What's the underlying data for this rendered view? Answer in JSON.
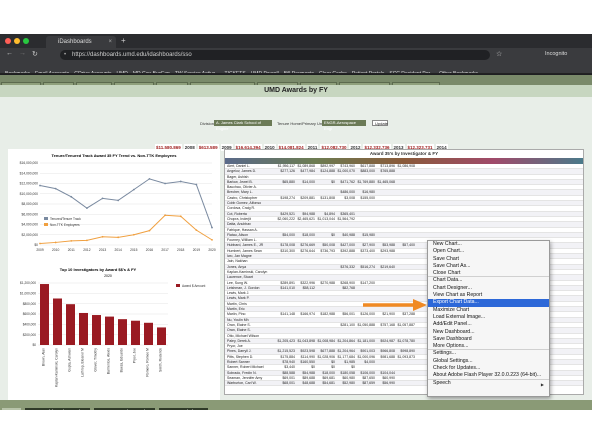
{
  "browser": {
    "tab_title": "iDashboards",
    "url": "https://dashboards.umd.edu/idashboards/sso",
    "profile": "Incognito",
    "bookmarks": [
      "Bookmarks",
      "Email Accounts",
      "GDrive Accounts",
      "UMD",
      "MD Gov BusExp",
      "TW Service Activa...",
      "TICKETS",
      "UMD Payroll",
      "Bill Payments",
      "Clear Cache",
      "Patient Portals",
      "SCC Resident Por...",
      "Other Bookmarks"
    ]
  },
  "dash_tabs": [
    "ADMR: Extension",
    "ENGR: Dean",
    "ENGR: Dev-DK",
    "Fringe PI/A Group",
    "Visibility Plots",
    "ENGR: Department Dashboards",
    "AGNR-ENGR Dev",
    "ENGR: Dev-Lab",
    "ENGR: IDR Dashboards",
    "SVPAAP: Dashboards"
  ],
  "app": {
    "title": "UMD Awards by FY",
    "division_label": "Division",
    "division_value": "A. James Clark School of Engine",
    "tenure_label": "Tenure Home/Primary Unit",
    "tenure_value": "ENGR-Aerospace Engi",
    "update_label": "Update"
  },
  "kpis": [
    {
      "value": "$11,580,869",
      "year": "2008"
    },
    {
      "value": "$613,589",
      "year": "2009"
    },
    {
      "value": "$16,614,394",
      "year": "2010"
    },
    {
      "value": "$14,081,824",
      "year": "2011"
    },
    {
      "value": "$12,082,730",
      "year": "2012"
    },
    {
      "value": "$12,332,736",
      "year": "2013"
    },
    {
      "value": "$12,323,731",
      "year": "2014"
    }
  ],
  "chart_data": [
    {
      "type": "line",
      "title": "Tenure/Tenured Track Award 35 FY Trend vs. Non-TTK Employees",
      "x": [
        "2009",
        "2010",
        "2011",
        "2012",
        "2013",
        "2014",
        "2015",
        "2016",
        "2017",
        "2018",
        "2019",
        "2020"
      ],
      "ylim": [
        0,
        16000000
      ],
      "yticks": [
        "$0",
        "$2,000,000",
        "$4,000,000",
        "$6,000,000",
        "$8,000,000",
        "$10,000,000",
        "$12,000,000",
        "$14,000,000",
        "$16,000,000"
      ],
      "series": [
        {
          "name": "Tenured/Tenure Track",
          "color": "#7a8aa0",
          "values": [
            11600000,
            11000000,
            9400000,
            7200000,
            9100000,
            8700000,
            10800000,
            12900000,
            12000000,
            12400000,
            11800000,
            3400000
          ]
        },
        {
          "name": "Non-TTK Employees",
          "color": "#f0a040",
          "values": [
            300000,
            500000,
            800000,
            900000,
            1600000,
            1500000,
            2000000,
            2800000,
            5800000,
            5600000,
            2900000,
            1000000
          ]
        }
      ]
    },
    {
      "type": "bar",
      "title": "Top 10 Investigators by Award $$'s & FY",
      "filter": "2020",
      "legend": "Award $ Amount",
      "ylim": [
        0,
        1200000
      ],
      "yticks": [
        "$0",
        "$200,000",
        "$400,000",
        "$600,000",
        "$800,000",
        "$1,000,000",
        "$1,200,000"
      ],
      "categories": [
        "Brown, Alan",
        "Kaplan-Kaminski, Carolyn",
        "Gupta, Ashwani",
        "Lathrop, Eleanor M",
        "Glover, Timothy",
        "Barrientos, Alexis",
        "Baeza, Eduardo",
        "Pryor, Joe",
        "Romero, Romeo M",
        "Smith, Roderick"
      ],
      "values": [
        1180000,
        900000,
        790000,
        620000,
        580000,
        550000,
        500000,
        470000,
        430000,
        340000
      ],
      "color": "#9a1a22"
    }
  ],
  "grid": {
    "title": "Award 35's by Investigator & FY",
    "header": "Primary Name",
    "rows": [
      [
        "Alert, Daniel L.",
        "$1,956,117",
        "$1,089,868",
        "$892,997",
        "$743,960",
        "$617,888",
        "$713,896",
        "$1,086,908"
      ],
      [
        "Angelov, James D.",
        "$277,126",
        "$477,984",
        "$124,888",
        "$1,000,070",
        "$883,000",
        "$765,888",
        ""
      ],
      [
        "Bager, Ashish",
        "",
        "",
        "",
        "",
        "",
        "",
        ""
      ],
      [
        "Barlow, Jewel B.",
        "$65,880",
        "$14,000",
        "$0",
        "$471,762",
        "$1,769,880",
        "$1,465,068",
        ""
      ],
      [
        "Bauchau, Olivier A.",
        "",
        "",
        "",
        "",
        "",
        "",
        ""
      ],
      [
        "Brecher, Mary L.",
        "",
        "",
        "",
        "$486,000",
        "$16,980",
        "",
        ""
      ],
      [
        "Castro, Christopher",
        "$198,274",
        "$209,881",
        "$131,808",
        "$3,008",
        "$155,000",
        "",
        ""
      ],
      [
        "Cobb Gomez, Alfonso",
        "",
        "",
        "",
        "",
        "",
        "",
        ""
      ],
      [
        "Cordova, Craig R.",
        "",
        "",
        "",
        "",
        "",
        "",
        ""
      ],
      [
        "Cot, Roberta",
        "$429,521",
        "$94,988",
        "$4,894",
        "$365,401",
        "",
        "",
        ""
      ],
      [
        "Chopra, Inderjit",
        "$2,060,222",
        "$2,465,621",
        "$1,013,044",
        "$1,564,792",
        "",
        "",
        ""
      ],
      [
        "Datta, Anubhav",
        "",
        "",
        "",
        "",
        "",
        "",
        ""
      ],
      [
        "Fatrique, Hassan A.",
        "",
        "",
        "",
        "",
        "",
        "",
        ""
      ],
      [
        "Flatau, Alison",
        "$54,000",
        "$18,000",
        "$0",
        "$40,988",
        "$15,980",
        "",
        ""
      ],
      [
        "Fourney, William L.",
        "",
        "",
        "",
        "",
        "",
        "",
        ""
      ],
      [
        "Hubbard, James E., JR",
        "$178,008",
        "$276,669",
        "$50,008",
        "$427,000",
        "$27,900",
        "$53,988",
        "$57,400"
      ],
      [
        "Humbert, James Sean",
        "$310,300",
        "$276,644",
        "$736,793",
        "$392,888",
        "$373,400",
        "$293,988",
        ""
      ],
      [
        "Iwo, Jan Magne",
        "",
        "",
        "",
        "",
        "",
        "",
        ""
      ],
      [
        "Jain, Nakhan",
        "",
        "",
        "",
        "",
        "",
        "",
        ""
      ],
      [
        "Jones, Anya",
        "",
        "",
        "",
        "$376,332",
        "$516,274",
        "$219,640",
        ""
      ],
      [
        "Kaplan-Kaminski, Carolyn",
        "",
        "",
        "",
        "",
        "",
        "",
        ""
      ],
      [
        "Laurence, Stuart",
        "",
        "",
        "",
        "",
        "",
        "",
        ""
      ],
      [
        "Lee, Sung W.",
        "$289,891",
        "$322,996",
        "$270,988",
        "$268,900",
        "$147,200",
        "",
        ""
      ],
      [
        "Leishman, J. Gordon",
        "$141,010",
        "$58,112",
        "",
        "$82,768",
        "",
        "",
        ""
      ],
      [
        "Lewis, Mark J.",
        "",
        "",
        "",
        "",
        "",
        "",
        ""
      ],
      [
        "Lewis, Mark P.",
        "",
        "",
        "",
        "",
        "",
        "",
        ""
      ],
      [
        "Martin, Chris",
        "",
        "",
        "",
        "",
        "",
        "",
        ""
      ],
      [
        "Martin, Eric",
        "",
        "",
        "",
        "",
        "",
        "",
        ""
      ],
      [
        "Mariin, Pino",
        "$141,148",
        "$166,974",
        "$182,988",
        "$56,001",
        "$126,000",
        "$21,900",
        "$37,288"
      ],
      [
        "Nu, Youlin Mh",
        "",
        "",
        "",
        "",
        "",
        "",
        ""
      ],
      [
        "Oran, Elaine S.",
        "",
        "",
        "",
        "$281,100",
        "$1,050,888",
        "$757,168",
        "$1,057,887"
      ],
      [
        "Oran, Elaine S.",
        "",
        "",
        "",
        "",
        "",
        "",
        ""
      ],
      [
        "Otto, Michael Wilson",
        "",
        "",
        "",
        "",
        "",
        "",
        ""
      ],
      [
        "Paley, Derek A.",
        "$1,205,423",
        "$1,043,898",
        "$1,008,984",
        "$1,204,864",
        "$1,181,000",
        "$924,987",
        "$1,078,780"
      ],
      [
        "Pryor, Joe",
        "",
        "",
        "",
        "",
        "",
        "",
        ""
      ],
      [
        "Pines, Darryll J.",
        "$1,215,523",
        "$923,598",
        "$677,888",
        "$1,204,964",
        "$901,003",
        "$966,808",
        "$998,890"
      ],
      [
        "Pitts, Stephen D.",
        "$175,884",
        "$114,990",
        "$1,028,906",
        "$1,177,684",
        "$1,000,096",
        "$981,688",
        "$1,093,873"
      ],
      [
        "Robert Sanner",
        "$78,940",
        "$160,550",
        "$0",
        "$1,985",
        "$4,000",
        "",
        ""
      ],
      [
        "Sanner, Robert Michael",
        "$3,440",
        "$0",
        "$0",
        "$0",
        "",
        "",
        ""
      ],
      [
        "Sobrado, Fredin N.",
        "$88,588",
        "$54,988",
        "$18,000",
        "$180,058",
        "$106,000",
        "$104,044",
        ""
      ],
      [
        "Seaman, Jennifer Amy",
        "$69,001",
        "$89,688",
        "$69,681",
        "$60,980",
        "$87,650",
        "$60,990",
        ""
      ],
      [
        "Warburton, Carl W.",
        "$68,001",
        "$48,688",
        "$54,681",
        "$52,980",
        "$87,659",
        "$56,990",
        ""
      ]
    ]
  },
  "context_menu": {
    "items": [
      "New Chart...",
      "Open Chart...",
      "Save Chart",
      "Save Chart As...",
      "Close Chart",
      "Chart Data...",
      "Chart Designer...",
      "View Chart as Report",
      "Export Chart Data...",
      "Maximize Chart",
      "Load External Image...",
      "Add/Edit Panel...",
      "New Dashboard...",
      "Save Dashboard",
      "More Options...",
      "Settings...",
      "Global Settings...",
      "Check for Updates...",
      "About Adobe Flash Player 32.0.0.223 (64-bit)...",
      "Speech"
    ],
    "highlighted": "Export Chart Data...",
    "speech_arrow": "▶"
  },
  "taskbar": [
    "Menu",
    "UMD Dashboard Launcher",
    "UMD Research Launcher",
    "UMD Awards by FY"
  ]
}
